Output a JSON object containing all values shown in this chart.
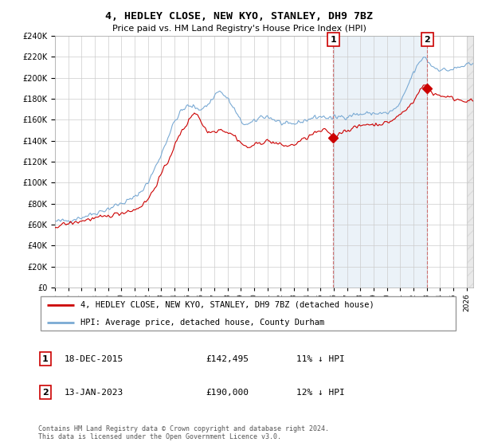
{
  "title": "4, HEDLEY CLOSE, NEW KYO, STANLEY, DH9 7BZ",
  "subtitle": "Price paid vs. HM Land Registry's House Price Index (HPI)",
  "legend_line1": "4, HEDLEY CLOSE, NEW KYO, STANLEY, DH9 7BZ (detached house)",
  "legend_line2": "HPI: Average price, detached house, County Durham",
  "sale1_date": "18-DEC-2015",
  "sale1_price": "£142,495",
  "sale1_hpi": "11% ↓ HPI",
  "sale2_date": "13-JAN-2023",
  "sale2_price": "£190,000",
  "sale2_hpi": "12% ↓ HPI",
  "footer": "Contains HM Land Registry data © Crown copyright and database right 2024.\nThis data is licensed under the Open Government Licence v3.0.",
  "red_color": "#cc0000",
  "blue_color": "#7aaad4",
  "blue_fill": "#dde8f4",
  "hatch_color": "#cccccc",
  "ylim": [
    0,
    240000
  ],
  "xlim_start": 1995,
  "xlim_end": 2026.5,
  "sale1_x": 2015.96,
  "sale1_y": 142495,
  "sale2_x": 2023.04,
  "sale2_y": 190000
}
